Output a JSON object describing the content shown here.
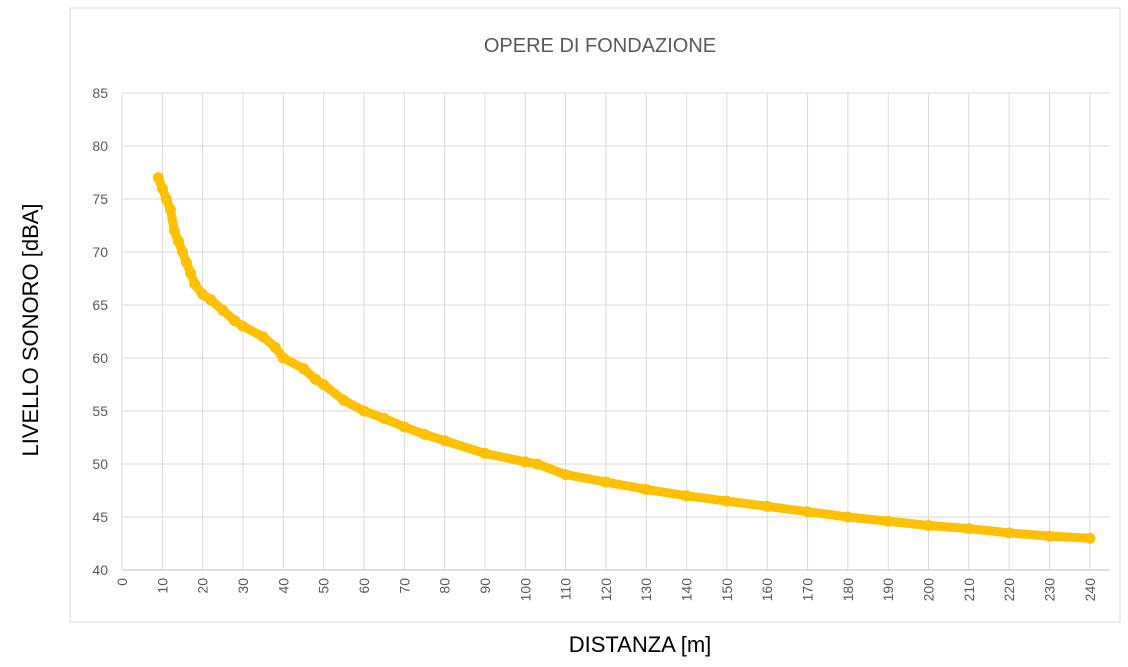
{
  "chart_data": {
    "type": "line",
    "title": "OPERE DI FONDAZIONE",
    "x_label": "DISTANZA [m]",
    "y_label": "LIVELLO SONORO [dBA]",
    "x": [
      9,
      10,
      11,
      12,
      13,
      14,
      15,
      16,
      17,
      18,
      20,
      22,
      25,
      28,
      30,
      35,
      38,
      40,
      45,
      48,
      50,
      55,
      60,
      65,
      70,
      75,
      80,
      90,
      100,
      103,
      110,
      120,
      130,
      140,
      150,
      160,
      170,
      180,
      190,
      200,
      210,
      220,
      230,
      240
    ],
    "series": [
      {
        "name": "LIVELLO SONORO",
        "color": "#ffc000",
        "values": [
          77,
          76,
          75,
          74,
          72,
          71,
          70,
          69,
          68,
          67,
          66,
          65.5,
          64.5,
          63.5,
          63,
          62,
          61,
          60,
          59,
          58,
          57.5,
          56,
          55,
          54.3,
          53.5,
          52.8,
          52.2,
          51,
          50.2,
          50,
          49,
          48.3,
          47.6,
          47,
          46.5,
          46,
          45.5,
          45,
          44.6,
          44.2,
          43.9,
          43.5,
          43.2,
          43
        ]
      }
    ],
    "xlim": [
      0,
      245
    ],
    "xticks": [
      0,
      10,
      20,
      30,
      40,
      50,
      60,
      70,
      80,
      90,
      100,
      110,
      120,
      130,
      140,
      150,
      160,
      170,
      180,
      190,
      200,
      210,
      220,
      230,
      240
    ],
    "ylim": [
      40,
      85
    ],
    "yticks": [
      40,
      45,
      50,
      55,
      60,
      65,
      70,
      75,
      80,
      85
    ],
    "grid": true
  }
}
